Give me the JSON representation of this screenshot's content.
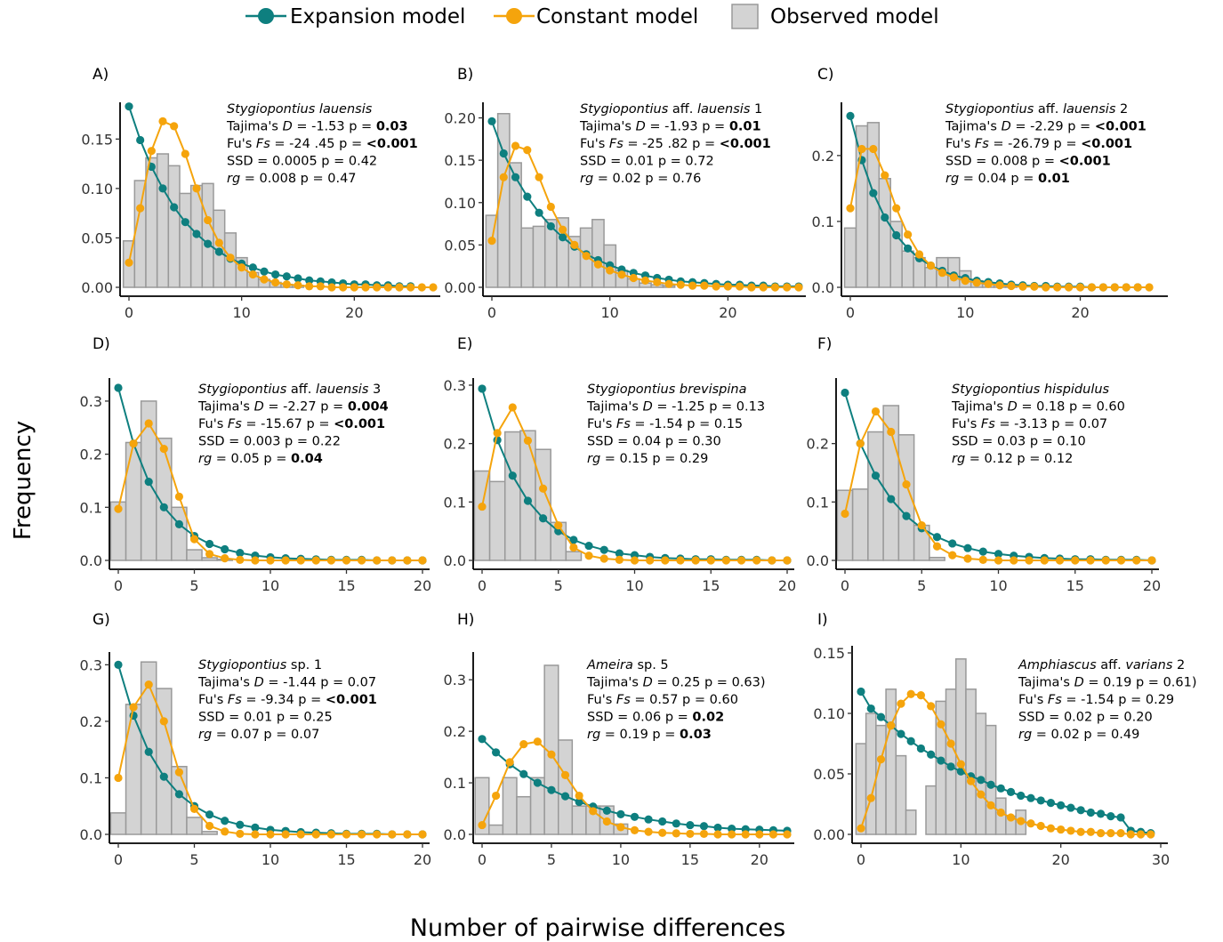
{
  "legend": {
    "expansion_label": "Expansion model",
    "constant_label": "Constant model",
    "observed_label": "Observed model"
  },
  "colors": {
    "expansion": "#0e7f7f",
    "constant": "#f5a40c",
    "bar_fill": "#d3d3d3",
    "bar_stroke": "#999999"
  },
  "axis": {
    "ylabel": "Frequency",
    "xlabel": "Number of pairwise differences"
  },
  "chart_data": [
    {
      "type": "bar+line",
      "panel": "A)",
      "title": "Stygiopontius lauensis",
      "stats": [
        [
          {
            "t": "Tajima's "
          },
          {
            "t": "D",
            "i": 1
          },
          {
            "t": " = -1.53 p = "
          },
          {
            "t": "0.03",
            "b": 1
          }
        ],
        [
          {
            "t": "Fu's "
          },
          {
            "t": "Fs",
            "i": 1
          },
          {
            "t": " =  -24 .45 p = "
          },
          {
            "t": "<0.001",
            "b": 1
          }
        ],
        [
          {
            "t": "SSD = 0.0005 p = 0.42"
          }
        ],
        [
          {
            "t": "rg",
            "i": 1
          },
          {
            "t": " = 0.008 p = 0.47"
          }
        ]
      ],
      "xlim": [
        0,
        27
      ],
      "ylim": [
        0,
        0.18
      ],
      "xticks": [
        0,
        10,
        20
      ],
      "yticks": [
        0,
        0.05,
        0.1,
        0.15
      ],
      "ytick_labels": [
        "0.00",
        "0.05",
        "0.10",
        "0.15"
      ],
      "observed": [
        0.047,
        0.108,
        0.131,
        0.135,
        0.123,
        0.095,
        0.103,
        0.105,
        0.078,
        0.055,
        0.03,
        0.015,
        0.008,
        0.005,
        0.003,
        0.002
      ],
      "expansion": [
        0.183,
        0.149,
        0.122,
        0.1,
        0.081,
        0.066,
        0.054,
        0.044,
        0.036,
        0.029,
        0.024,
        0.02,
        0.016,
        0.013,
        0.011,
        0.009,
        0.007,
        0.006,
        0.005,
        0.004,
        0.003,
        0.003,
        0.002,
        0.002,
        0.001,
        0.001
      ],
      "constant": [
        0.025,
        0.08,
        0.138,
        0.168,
        0.163,
        0.135,
        0.1,
        0.068,
        0.045,
        0.03,
        0.02,
        0.013,
        0.008,
        0.005,
        0.003,
        0.002,
        0.001,
        0.001,
        0.0,
        0.0,
        0.0,
        0.0,
        0.0,
        0.0,
        0.0,
        0.0,
        0.0,
        0.0
      ]
    },
    {
      "type": "bar+line",
      "panel": "B)",
      "title": "Stygiopontius aff. lauensis 1",
      "stats": [
        [
          {
            "t": "Tajima's "
          },
          {
            "t": "D",
            "i": 1
          },
          {
            "t": " = -1.93 p = "
          },
          {
            "t": "0.01",
            "b": 1
          }
        ],
        [
          {
            "t": "Fu's "
          },
          {
            "t": "Fs",
            "i": 1
          },
          {
            "t": " =  -25 .82 p = "
          },
          {
            "t": "<0.001",
            "b": 1
          }
        ],
        [
          {
            "t": "SSD = 0.01 p = 0.72"
          }
        ],
        [
          {
            "t": "rg",
            "i": 1
          },
          {
            "t": " = 0.02 p = 0.76"
          }
        ]
      ],
      "xlim": [
        0,
        26
      ],
      "ylim": [
        0,
        0.21
      ],
      "xticks": [
        0,
        10,
        20
      ],
      "yticks": [
        0,
        0.05,
        0.1,
        0.15,
        0.2
      ],
      "ytick_labels": [
        "0.00",
        "0.05",
        "0.10",
        "0.15",
        "0.20"
      ],
      "observed": [
        0.085,
        0.205,
        0.147,
        0.07,
        0.072,
        0.08,
        0.082,
        0.06,
        0.07,
        0.08,
        0.05,
        0.02,
        0.01,
        0.005,
        0.003,
        0.002
      ],
      "expansion": [
        0.196,
        0.158,
        0.13,
        0.107,
        0.088,
        0.072,
        0.059,
        0.048,
        0.039,
        0.032,
        0.026,
        0.021,
        0.017,
        0.014,
        0.011,
        0.009,
        0.007,
        0.006,
        0.005,
        0.004,
        0.003,
        0.003,
        0.002,
        0.002,
        0.001,
        0.001,
        0.001
      ],
      "constant": [
        0.055,
        0.13,
        0.167,
        0.162,
        0.13,
        0.095,
        0.068,
        0.05,
        0.037,
        0.027,
        0.02,
        0.015,
        0.011,
        0.008,
        0.006,
        0.004,
        0.003,
        0.002,
        0.002,
        0.001,
        0.001,
        0.001,
        0.0,
        0.0,
        0.0,
        0.0,
        0.0
      ]
    },
    {
      "type": "bar+line",
      "panel": "C)",
      "title": "Stygiopontius aff. lauensis 2",
      "stats": [
        [
          {
            "t": "Tajima's "
          },
          {
            "t": "D",
            "i": 1
          },
          {
            "t": " = -2.29 p = "
          },
          {
            "t": "<0.001",
            "b": 1
          }
        ],
        [
          {
            "t": "Fu's "
          },
          {
            "t": "Fs",
            "i": 1
          },
          {
            "t": " =  -26.79 p = "
          },
          {
            "t": "<0.001",
            "b": 1
          }
        ],
        [
          {
            "t": "SSD = 0.008 p = "
          },
          {
            "t": "<0.001",
            "b": 1
          }
        ],
        [
          {
            "t": "rg",
            "i": 1
          },
          {
            "t": " = 0.04 p = "
          },
          {
            "t": "0.01",
            "b": 1
          }
        ]
      ],
      "xlim": [
        0,
        27
      ],
      "ylim": [
        0,
        0.27
      ],
      "xticks": [
        0,
        10,
        20
      ],
      "yticks": [
        0,
        0.1,
        0.2
      ],
      "ytick_labels": [
        "0.0",
        "0.1",
        "0.2"
      ],
      "observed": [
        0.09,
        0.245,
        0.25,
        0.165,
        0.1,
        0.055,
        0.045,
        0.03,
        0.045,
        0.045,
        0.025,
        0.01,
        0.005,
        0.003,
        0.002
      ],
      "expansion": [
        0.26,
        0.193,
        0.143,
        0.106,
        0.079,
        0.059,
        0.044,
        0.033,
        0.025,
        0.018,
        0.014,
        0.01,
        0.008,
        0.006,
        0.004,
        0.003,
        0.002,
        0.002,
        0.001,
        0.001,
        0.001,
        0.0,
        0.0,
        0.0,
        0.0,
        0.0
      ],
      "constant": [
        0.12,
        0.21,
        0.21,
        0.17,
        0.12,
        0.08,
        0.05,
        0.033,
        0.022,
        0.015,
        0.01,
        0.007,
        0.005,
        0.003,
        0.002,
        0.001,
        0.001,
        0.0,
        0.0,
        0.0,
        0.0,
        0.0,
        0.0,
        0.0,
        0.0,
        0.0,
        0.0
      ]
    },
    {
      "type": "bar+line",
      "panel": "D)",
      "title": "Stygiopontius aff. lauensis 3",
      "stats": [
        [
          {
            "t": "Tajima's "
          },
          {
            "t": "D",
            "i": 1
          },
          {
            "t": " = -2.27 p = "
          },
          {
            "t": "0.004",
            "b": 1
          }
        ],
        [
          {
            "t": "Fu's "
          },
          {
            "t": "Fs",
            "i": 1
          },
          {
            "t": " =  -15.67 p = "
          },
          {
            "t": "<0.001",
            "b": 1
          }
        ],
        [
          {
            "t": "SSD = 0.003 p = 0.22"
          }
        ],
        [
          {
            "t": "rg",
            "i": 1
          },
          {
            "t": " = 0.05 p = "
          },
          {
            "t": "0.04",
            "b": 1
          }
        ]
      ],
      "xlim": [
        0,
        20
      ],
      "ylim": [
        0,
        0.33
      ],
      "xticks": [
        0,
        5,
        10,
        15,
        20
      ],
      "yticks": [
        0,
        0.1,
        0.2,
        0.3
      ],
      "ytick_labels": [
        "0.0",
        "0.1",
        "0.2",
        "0.3"
      ],
      "observed": [
        0.11,
        0.222,
        0.3,
        0.23,
        0.1,
        0.02,
        0.005,
        0.002
      ],
      "expansion": [
        0.325,
        0.22,
        0.148,
        0.1,
        0.068,
        0.046,
        0.031,
        0.021,
        0.014,
        0.009,
        0.006,
        0.004,
        0.003,
        0.002,
        0.001,
        0.001,
        0.001,
        0.0,
        0.0,
        0.0,
        0.0
      ],
      "constant": [
        0.097,
        0.22,
        0.258,
        0.21,
        0.12,
        0.04,
        0.012,
        0.004,
        0.001,
        0.0,
        0.0,
        0.0,
        0.0,
        0.0,
        0.0,
        0.0,
        0.0,
        0.0,
        0.0,
        0.0,
        0.0
      ]
    },
    {
      "type": "bar+line",
      "panel": "E)",
      "title": "Stygiopontius brevispina",
      "stats": [
        [
          {
            "t": "Tajima's "
          },
          {
            "t": "D",
            "i": 1
          },
          {
            "t": " = -1.25 p = 0.13"
          }
        ],
        [
          {
            "t": "Fu's "
          },
          {
            "t": "Fs",
            "i": 1
          },
          {
            "t": " =  -1.54 p = 0.15"
          }
        ],
        [
          {
            "t": "SSD = 0.04 p = 0.30"
          }
        ],
        [
          {
            "t": "rg",
            "i": 1
          },
          {
            "t": " = 0.15 p = 0.29"
          }
        ]
      ],
      "xlim": [
        0,
        20
      ],
      "ylim": [
        0,
        0.3
      ],
      "xticks": [
        0,
        5,
        10,
        15,
        20
      ],
      "yticks": [
        0,
        0.1,
        0.2,
        0.3
      ],
      "ytick_labels": [
        "0.0",
        "0.1",
        "0.2",
        "0.3"
      ],
      "observed": [
        0.153,
        0.135,
        0.22,
        0.222,
        0.19,
        0.065,
        0.015
      ],
      "expansion": [
        0.294,
        0.206,
        0.145,
        0.102,
        0.072,
        0.05,
        0.035,
        0.025,
        0.018,
        0.012,
        0.009,
        0.006,
        0.004,
        0.003,
        0.002,
        0.002,
        0.001,
        0.001,
        0.001,
        0.0,
        0.0
      ],
      "constant": [
        0.092,
        0.218,
        0.262,
        0.205,
        0.123,
        0.06,
        0.022,
        0.008,
        0.003,
        0.001,
        0.0,
        0.0,
        0.0,
        0.0,
        0.0,
        0.0,
        0.0,
        0.0,
        0.0,
        0.0,
        0.0
      ]
    },
    {
      "type": "bar+line",
      "panel": "F)",
      "title": "Stygiopontius hispidulus",
      "stats": [
        [
          {
            "t": "Tajima's "
          },
          {
            "t": "D",
            "i": 1
          },
          {
            "t": " = 0.18 p = 0.60"
          }
        ],
        [
          {
            "t": "Fu's "
          },
          {
            "t": "Fs",
            "i": 1
          },
          {
            "t": " =  -3.13 p = 0.07"
          }
        ],
        [
          {
            "t": "SSD = 0.03 p = 0.10"
          }
        ],
        [
          {
            "t": "rg",
            "i": 1
          },
          {
            "t": " = 0.12 p = 0.12"
          }
        ]
      ],
      "xlim": [
        0,
        20
      ],
      "ylim": [
        0,
        0.3
      ],
      "xticks": [
        0,
        5,
        10,
        15,
        20
      ],
      "yticks": [
        0,
        0.1,
        0.2
      ],
      "ytick_labels": [
        "0.0",
        "0.1",
        "0.2"
      ],
      "observed": [
        0.12,
        0.122,
        0.22,
        0.265,
        0.215,
        0.06,
        0.005
      ],
      "expansion": [
        0.287,
        0.2,
        0.145,
        0.105,
        0.076,
        0.055,
        0.04,
        0.029,
        0.021,
        0.015,
        0.011,
        0.008,
        0.006,
        0.004,
        0.003,
        0.002,
        0.002,
        0.001,
        0.001,
        0.001,
        0.0
      ],
      "constant": [
        0.08,
        0.2,
        0.255,
        0.22,
        0.13,
        0.06,
        0.024,
        0.009,
        0.003,
        0.001,
        0.0,
        0.0,
        0.0,
        0.0,
        0.0,
        0.0,
        0.0,
        0.0,
        0.0,
        0.0,
        0.0
      ]
    },
    {
      "type": "bar+line",
      "panel": "G)",
      "title": "Stygiopontius sp. 1",
      "stats": [
        [
          {
            "t": "Tajima's "
          },
          {
            "t": "D",
            "i": 1
          },
          {
            "t": " = -1.44 p = 0.07"
          }
        ],
        [
          {
            "t": "Fu's "
          },
          {
            "t": "Fs",
            "i": 1
          },
          {
            "t": " =  -9.34 p = "
          },
          {
            "t": "<0.001",
            "b": 1
          }
        ],
        [
          {
            "t": "SSD = 0.01 p = 0.25"
          }
        ],
        [
          {
            "t": "rg",
            "i": 1
          },
          {
            "t": " = 0.07 p = 0.07"
          }
        ]
      ],
      "xlim": [
        0,
        20
      ],
      "ylim": [
        0,
        0.31
      ],
      "xticks": [
        0,
        5,
        10,
        15,
        20
      ],
      "yticks": [
        0,
        0.1,
        0.2,
        0.3
      ],
      "ytick_labels": [
        "0.0",
        "0.1",
        "0.2",
        "0.3"
      ],
      "observed": [
        0.038,
        0.23,
        0.305,
        0.258,
        0.12,
        0.03,
        0.005
      ],
      "expansion": [
        0.3,
        0.21,
        0.146,
        0.102,
        0.071,
        0.05,
        0.035,
        0.024,
        0.017,
        0.012,
        0.008,
        0.006,
        0.004,
        0.003,
        0.002,
        0.001,
        0.001,
        0.001,
        0.0,
        0.0,
        0.0
      ],
      "constant": [
        0.1,
        0.225,
        0.265,
        0.2,
        0.11,
        0.045,
        0.015,
        0.005,
        0.001,
        0.0,
        0.0,
        0.0,
        0.0,
        0.0,
        0.0,
        0.0,
        0.0,
        0.0,
        0.0,
        0.0,
        0.0
      ]
    },
    {
      "type": "bar+line",
      "panel": "H)",
      "title": "Ameira sp. 5",
      "stats": [
        [
          {
            "t": "Tajima's "
          },
          {
            "t": "D",
            "i": 1
          },
          {
            "t": " = 0.25 p = 0.63)"
          }
        ],
        [
          {
            "t": "Fu's "
          },
          {
            "t": "Fs",
            "i": 1
          },
          {
            "t": " =  0.57 p = 0.60"
          }
        ],
        [
          {
            "t": "SSD = 0.06 p = "
          },
          {
            "t": "0.02",
            "b": 1
          }
        ],
        [
          {
            "t": "rg",
            "i": 1
          },
          {
            "t": " = 0.19 p = "
          },
          {
            "t": "0.03",
            "b": 1
          }
        ]
      ],
      "xlim": [
        0,
        22
      ],
      "ylim": [
        0,
        0.34
      ],
      "xticks": [
        0,
        5,
        10,
        15,
        20
      ],
      "yticks": [
        0,
        0.1,
        0.2,
        0.3
      ],
      "ytick_labels": [
        "0.0",
        "0.1",
        "0.2",
        "0.3"
      ],
      "observed": [
        0.11,
        0.018,
        0.11,
        0.073,
        0.11,
        0.328,
        0.183,
        0.055,
        0.055,
        0.055,
        0.02
      ],
      "expansion": [
        0.185,
        0.159,
        0.136,
        0.117,
        0.1,
        0.086,
        0.074,
        0.063,
        0.054,
        0.046,
        0.039,
        0.034,
        0.029,
        0.025,
        0.021,
        0.018,
        0.016,
        0.013,
        0.011,
        0.01,
        0.009,
        0.008,
        0.007
      ],
      "constant": [
        0.018,
        0.075,
        0.14,
        0.175,
        0.18,
        0.155,
        0.115,
        0.075,
        0.045,
        0.025,
        0.014,
        0.008,
        0.005,
        0.003,
        0.002,
        0.001,
        0.001,
        0.0,
        0.0,
        0.0,
        0.0,
        0.0,
        0.0
      ]
    },
    {
      "type": "bar+line",
      "panel": "I)",
      "title": "Amphiascus aff. varians 2",
      "stats": [
        [
          {
            "t": "Tajima's "
          },
          {
            "t": "D",
            "i": 1
          },
          {
            "t": " = 0.19 p = 0.61)"
          }
        ],
        [
          {
            "t": "Fu's "
          },
          {
            "t": "Fs",
            "i": 1
          },
          {
            "t": " =  -1.54 p = 0.29"
          }
        ],
        [
          {
            "t": "SSD = 0.02 p = 0.20"
          }
        ],
        [
          {
            "t": "rg",
            "i": 1
          },
          {
            "t": " = 0.02 p = 0.49"
          }
        ]
      ],
      "xlim": [
        0,
        30
      ],
      "ylim": [
        0,
        0.15
      ],
      "xticks": [
        0,
        10,
        20,
        30
      ],
      "yticks": [
        0,
        0.05,
        0.1,
        0.15
      ],
      "ytick_labels": [
        "0.00",
        "0.05",
        "0.10",
        "0.15"
      ],
      "observed": [
        0.075,
        0.1,
        0.09,
        0.12,
        0.065,
        0.02,
        0.0,
        0.04,
        0.11,
        0.12,
        0.145,
        0.12,
        0.1,
        0.09,
        0.03,
        0.015,
        0.02
      ],
      "expansion": [
        0.118,
        0.104,
        0.097,
        0.09,
        0.083,
        0.077,
        0.071,
        0.066,
        0.061,
        0.056,
        0.052,
        0.048,
        0.045,
        0.041,
        0.038,
        0.035,
        0.032,
        0.03,
        0.028,
        0.026,
        0.024,
        0.022,
        0.02,
        0.018,
        0.017,
        0.015,
        0.014,
        0.003,
        0.002,
        0.001
      ],
      "constant": [
        0.005,
        0.03,
        0.062,
        0.09,
        0.108,
        0.116,
        0.115,
        0.106,
        0.091,
        0.075,
        0.058,
        0.044,
        0.033,
        0.024,
        0.018,
        0.014,
        0.011,
        0.009,
        0.007,
        0.005,
        0.004,
        0.003,
        0.002,
        0.002,
        0.001,
        0.001,
        0.001,
        0.0,
        0.0,
        0.0
      ]
    }
  ]
}
